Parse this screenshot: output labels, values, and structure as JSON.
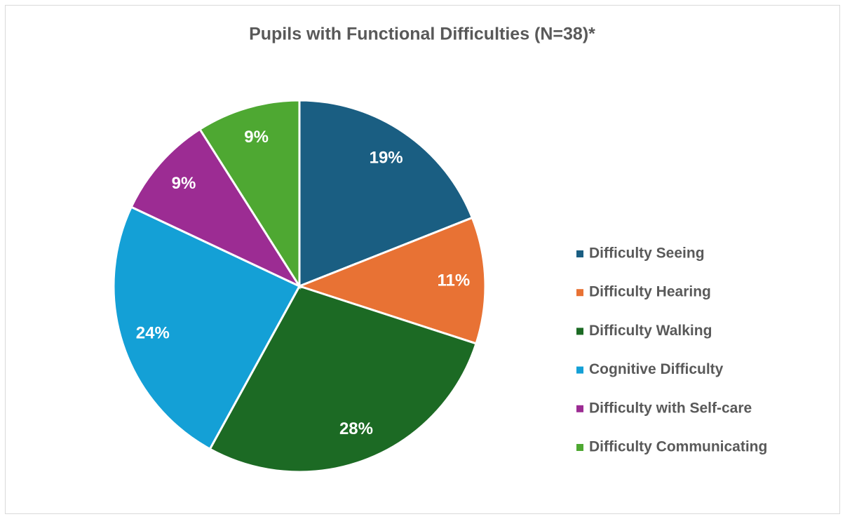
{
  "chart_data": {
    "type": "pie",
    "title": "Pupils with Functional Difficulties (N=38)*",
    "categories": [
      "Difficulty Seeing",
      "Difficulty Hearing",
      "Difficulty Walking",
      "Cognitive Difficulty",
      "Difficulty with Self-care",
      "Difficulty Communicating"
    ],
    "values": [
      19,
      11,
      28,
      24,
      9,
      9
    ],
    "value_labels": [
      "19%",
      "11%",
      "28%",
      "24%",
      "9%",
      "9%"
    ],
    "colors": [
      "#1a5e82",
      "#e87234",
      "#1c6a24",
      "#14a0d6",
      "#9c2c93",
      "#4ea832"
    ],
    "legend": "right"
  }
}
